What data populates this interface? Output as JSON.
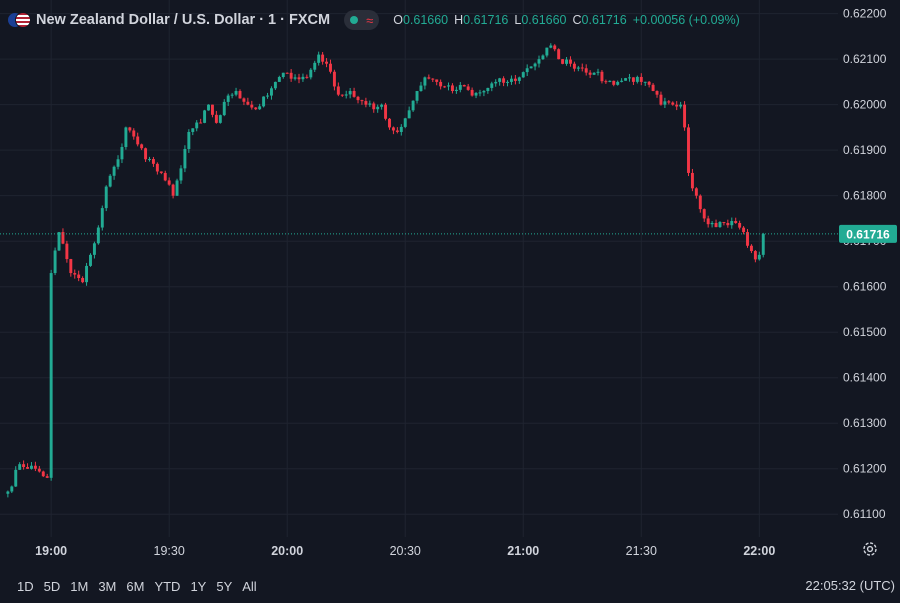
{
  "header": {
    "title": "New Zealand Dollar / U.S. Dollar · 1 · FXCM",
    "flag_icon": "nzd-usd-flag-icon",
    "status_dot_icon": "market-open-dot-icon",
    "status_wave_icon": "wave-icon",
    "ohlc": {
      "o_label": "O",
      "o": "0.61660",
      "h_label": "H",
      "h": "0.61716",
      "l_label": "L",
      "l": "0.61660",
      "c_label": "C",
      "c": "0.61716",
      "change": "+0.00056 (+0.09%)"
    }
  },
  "colors": {
    "background": "#131722",
    "grid": "#1f2430",
    "up": "#22ab94",
    "down": "#f23645",
    "text": "#d1d4dc",
    "last_price_bg": "#22ab94"
  },
  "ranges": [
    "1D",
    "5D",
    "1M",
    "3M",
    "6M",
    "YTD",
    "1Y",
    "5Y",
    "All"
  ],
  "clock": "22:05:32 (UTC)",
  "settings_icon": "settings-gear-icon",
  "chart_data": {
    "type": "candlestick",
    "title": "New Zealand Dollar / U.S. Dollar · 1 · FXCM",
    "ylim": [
      0.6105,
      0.6223
    ],
    "xlim_minutes_label": [
      "18:47",
      "22:20"
    ],
    "y_ticks": [
      "0.62200",
      "0.62100",
      "0.62000",
      "0.61900",
      "0.61800",
      "0.61700",
      "0.61600",
      "0.61500",
      "0.61400",
      "0.61300",
      "0.61200",
      "0.61100"
    ],
    "x_ticks": [
      "19:00",
      "19:30",
      "20:00",
      "20:30",
      "21:00",
      "21:30",
      "22:00"
    ],
    "last_price": "0.61716",
    "grid": true,
    "anchors": [
      [
        "18:49",
        0.6115
      ],
      [
        "18:52",
        0.6121
      ],
      [
        "18:56",
        0.612
      ],
      [
        "18:59",
        0.6118
      ],
      [
        "19:00",
        0.6163
      ],
      [
        "19:02",
        0.6172
      ],
      [
        "19:05",
        0.6163
      ],
      [
        "19:08",
        0.6161
      ],
      [
        "19:10",
        0.6167
      ],
      [
        "19:12",
        0.6173
      ],
      [
        "19:14",
        0.6182
      ],
      [
        "19:17",
        0.6188
      ],
      [
        "19:19",
        0.6195
      ],
      [
        "19:21",
        0.6193
      ],
      [
        "19:24",
        0.6188
      ],
      [
        "19:26",
        0.6187
      ],
      [
        "19:28",
        0.6185
      ],
      [
        "19:31",
        0.618
      ],
      [
        "19:33",
        0.6186
      ],
      [
        "19:35",
        0.6194
      ],
      [
        "19:38",
        0.6196
      ],
      [
        "19:40",
        0.62
      ],
      [
        "19:42",
        0.6196
      ],
      [
        "19:45",
        0.6202
      ],
      [
        "19:47",
        0.6203
      ],
      [
        "19:50",
        0.62
      ],
      [
        "19:52",
        0.6199
      ],
      [
        "19:55",
        0.6202
      ],
      [
        "19:57",
        0.6205
      ],
      [
        "20:00",
        0.6207
      ],
      [
        "20:02",
        0.6206
      ],
      [
        "20:05",
        0.6206
      ],
      [
        "20:08",
        0.6211
      ],
      [
        "20:10",
        0.6209
      ],
      [
        "20:12",
        0.6204
      ],
      [
        "20:14",
        0.6202
      ],
      [
        "20:16",
        0.6203
      ],
      [
        "20:18",
        0.6201
      ],
      [
        "20:20",
        0.62
      ],
      [
        "20:22",
        0.6199
      ],
      [
        "20:24",
        0.62
      ],
      [
        "20:26",
        0.6195
      ],
      [
        "20:28",
        0.6194
      ],
      [
        "20:30",
        0.6197
      ],
      [
        "20:33",
        0.6203
      ],
      [
        "20:35",
        0.6206
      ],
      [
        "20:38",
        0.6205
      ],
      [
        "20:40",
        0.6204
      ],
      [
        "20:42",
        0.6203
      ],
      [
        "20:45",
        0.6204
      ],
      [
        "20:47",
        0.6202
      ],
      [
        "20:50",
        0.6203
      ],
      [
        "20:53",
        0.6205
      ],
      [
        "20:56",
        0.6205
      ],
      [
        "20:59",
        0.6206
      ],
      [
        "21:01",
        0.6208
      ],
      [
        "21:04",
        0.621
      ],
      [
        "21:07",
        0.6213
      ],
      [
        "21:09",
        0.621
      ],
      [
        "21:12",
        0.6209
      ],
      [
        "21:15",
        0.6208
      ],
      [
        "21:18",
        0.6207
      ],
      [
        "21:21",
        0.6205
      ],
      [
        "21:24",
        0.6205
      ],
      [
        "21:27",
        0.6206
      ],
      [
        "21:30",
        0.6205
      ],
      [
        "21:33",
        0.6203
      ],
      [
        "21:35",
        0.62
      ],
      [
        "21:38",
        0.62
      ],
      [
        "21:40",
        0.62
      ],
      [
        "21:41",
        0.6195
      ],
      [
        "21:42",
        0.6185
      ],
      [
        "21:44",
        0.618
      ],
      [
        "21:46",
        0.6175
      ],
      [
        "21:48",
        0.6174
      ],
      [
        "21:51",
        0.6174
      ],
      [
        "21:54",
        0.6174
      ],
      [
        "21:56",
        0.6172
      ],
      [
        "21:57",
        0.6169
      ],
      [
        "21:59",
        0.6166
      ],
      [
        "22:00",
        0.6167
      ],
      [
        "22:01",
        0.61716
      ]
    ]
  }
}
